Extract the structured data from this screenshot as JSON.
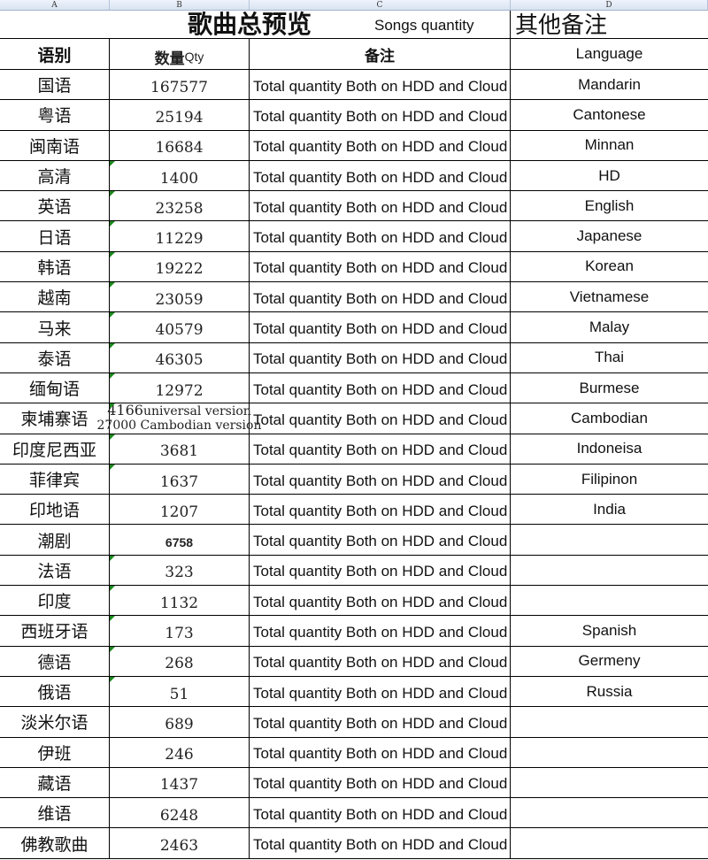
{
  "column_headers": [
    "A",
    "B",
    "C",
    "D"
  ],
  "title": {
    "main": "歌曲总预览",
    "sub": "Songs quantity",
    "other": "其他备注"
  },
  "header": {
    "language_cn": "语别",
    "qty_cn": "数量",
    "qty_en": "Qty",
    "remark_cn": "备注",
    "language_en": "Language"
  },
  "rows": [
    {
      "cn": "国语",
      "qty": "167577",
      "note": "Total quantity Both on HDD and Cloud",
      "en": "Mandarin",
      "flag": false
    },
    {
      "cn": "粤语",
      "qty": "25194",
      "note": "Total quantity Both on HDD and Cloud",
      "en": "Cantonese",
      "flag": false
    },
    {
      "cn": "闽南语",
      "qty": "16684",
      "note": "Total quantity Both on HDD and Cloud",
      "en": "Minnan",
      "flag": false
    },
    {
      "cn": "高清",
      "qty": "1400",
      "note": "Total quantity Both on HDD and Cloud",
      "en": "HD",
      "flag": true
    },
    {
      "cn": "英语",
      "qty": "23258",
      "note": "Total quantity Both on HDD and Cloud",
      "en": "English",
      "flag": true
    },
    {
      "cn": "日语",
      "qty": "11229",
      "note": "Total quantity Both on HDD and Cloud",
      "en": "Japanese",
      "flag": true
    },
    {
      "cn": "韩语",
      "qty": "19222",
      "note": "Total quantity Both on HDD and Cloud",
      "en": "Korean",
      "flag": true
    },
    {
      "cn": "越南",
      "qty": "23059",
      "note": "Total quantity Both on HDD and Cloud",
      "en": "Vietnamese",
      "flag": true
    },
    {
      "cn": "马来",
      "qty": "40579",
      "note": "Total quantity Both on HDD and Cloud",
      "en": "Malay",
      "flag": true
    },
    {
      "cn": "泰语",
      "qty": "46305",
      "note": "Total quantity Both on HDD and Cloud",
      "en": "Thai",
      "flag": true
    },
    {
      "cn": "缅甸语",
      "qty": "12972",
      "note": "Total quantity Both on HDD and Cloud",
      "en": "Burmese",
      "flag": true
    },
    {
      "cn": "柬埔寨语",
      "qty": "4166",
      "qty_line1_suffix": "universal version",
      "qty_line2": "27000 Cambodian version",
      "note": "Total quantity Both on HDD and Cloud",
      "en": "Cambodian",
      "flag": true
    },
    {
      "cn": "印度尼西亚",
      "qty": "3681",
      "note": "Total quantity Both on HDD and Cloud",
      "en": "Indoneisa",
      "flag": true
    },
    {
      "cn": "菲律宾",
      "qty": "1637",
      "note": "Total quantity Both on HDD and Cloud",
      "en": "Filipinon",
      "flag": true
    },
    {
      "cn": "印地语",
      "qty": "1207",
      "note": "Total quantity Both on HDD and Cloud",
      "en": "India",
      "flag": false
    },
    {
      "cn": "潮剧",
      "qty": "6758",
      "note": "Total quantity Both on HDD and Cloud",
      "en": "",
      "flag": false,
      "bold": true
    },
    {
      "cn": "法语",
      "qty": "323",
      "note": "Total quantity Both on HDD and Cloud",
      "en": "",
      "flag": true
    },
    {
      "cn": "印度",
      "qty": "1132",
      "note": "Total quantity Both on HDD and Cloud",
      "en": "",
      "flag": true
    },
    {
      "cn": "西班牙语",
      "qty": "173",
      "note": "Total quantity Both on HDD and Cloud",
      "en": "Spanish",
      "flag": true
    },
    {
      "cn": "德语",
      "qty": "268",
      "note": "Total quantity Both on HDD and Cloud",
      "en": "Germeny",
      "flag": true
    },
    {
      "cn": "俄语",
      "qty": "51",
      "note": "Total quantity Both on HDD and Cloud",
      "en": "Russia",
      "flag": true
    },
    {
      "cn": "淡米尔语",
      "qty": "689",
      "note": "Total quantity Both on HDD and Cloud",
      "en": "",
      "flag": false
    },
    {
      "cn": "伊班",
      "qty": "246",
      "note": "Total quantity Both on HDD and Cloud",
      "en": "",
      "flag": false
    },
    {
      "cn": "藏语",
      "qty": "1437",
      "note": "Total quantity Both on HDD and Cloud",
      "en": "",
      "flag": false
    },
    {
      "cn": "维语",
      "qty": "6248",
      "note": "Total quantity Both on HDD and Cloud",
      "en": "",
      "flag": false
    },
    {
      "cn": "佛教歌曲",
      "qty": "2463",
      "note": "Total quantity Both on HDD and Cloud",
      "en": "",
      "flag": false
    }
  ],
  "colors": {
    "flag": "#1a8a1a",
    "column_header_bg": "#dce6f2"
  }
}
